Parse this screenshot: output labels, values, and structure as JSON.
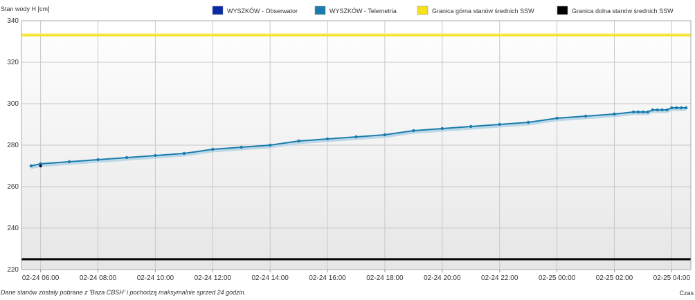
{
  "chart_data": {
    "type": "line",
    "ylabel": "Stan wody H [cm]",
    "xlabel": "Czas",
    "ylim": [
      220,
      340
    ],
    "yticks": [
      220,
      240,
      260,
      280,
      300,
      320,
      340
    ],
    "xlim": [
      "02-24 05:20",
      "02-25 04:40"
    ],
    "xticks": [
      "02-24 06:00",
      "02-24 08:00",
      "02-24 10:00",
      "02-24 12:00",
      "02-24 14:00",
      "02-24 16:00",
      "02-24 18:00",
      "02-24 20:00",
      "02-24 22:00",
      "02-25 00:00",
      "02-25 02:00",
      "02-25 04:00"
    ],
    "grid": true,
    "legend_position": "top",
    "legend": [
      {
        "name": "WYSZKÓW - Obserwator",
        "color": "#0a2aa8"
      },
      {
        "name": "WYSZKÓW - Telemetria",
        "color": "#1a7cad"
      },
      {
        "name": "Granica górna stanów średnich SSW",
        "color": "#f5e21b"
      },
      {
        "name": "Granica dolna stanów średnich SSW",
        "color": "#000000"
      }
    ],
    "series": [
      {
        "name": "WYSZKÓW - Telemetria",
        "color": "#1a7cad",
        "points": [
          [
            "02-24 05:40",
            270
          ],
          [
            "02-24 06:00",
            271
          ],
          [
            "02-24 07:00",
            272
          ],
          [
            "02-24 08:00",
            273
          ],
          [
            "02-24 09:00",
            274
          ],
          [
            "02-24 10:00",
            275
          ],
          [
            "02-24 11:00",
            276
          ],
          [
            "02-24 12:00",
            278
          ],
          [
            "02-24 13:00",
            279
          ],
          [
            "02-24 14:00",
            280
          ],
          [
            "02-24 15:00",
            282
          ],
          [
            "02-24 16:00",
            283
          ],
          [
            "02-24 17:00",
            284
          ],
          [
            "02-24 18:00",
            285
          ],
          [
            "02-24 19:00",
            287
          ],
          [
            "02-24 20:00",
            288
          ],
          [
            "02-24 21:00",
            289
          ],
          [
            "02-24 22:00",
            290
          ],
          [
            "02-24 23:00",
            291
          ],
          [
            "02-25 00:00",
            293
          ],
          [
            "02-25 01:00",
            294
          ],
          [
            "02-25 02:00",
            295
          ],
          [
            "02-25 02:40",
            296
          ],
          [
            "02-25 02:50",
            296
          ],
          [
            "02-25 03:00",
            296
          ],
          [
            "02-25 03:10",
            296
          ],
          [
            "02-25 03:20",
            297
          ],
          [
            "02-25 03:30",
            297
          ],
          [
            "02-25 03:40",
            297
          ],
          [
            "02-25 03:50",
            297
          ],
          [
            "02-25 04:00",
            298
          ],
          [
            "02-25 04:10",
            298
          ],
          [
            "02-25 04:20",
            298
          ],
          [
            "02-25 04:30",
            298
          ]
        ]
      },
      {
        "name": "WYSZKÓW - Obserwator",
        "color": "#0a0a3a",
        "points": [
          [
            "02-24 06:00",
            270
          ]
        ]
      }
    ],
    "reference_lines": [
      {
        "name": "Granica górna stanów średnich SSW",
        "value": 333,
        "color": "#f5e21b"
      },
      {
        "name": "Granica dolna stanów średnich SSW",
        "value": 225,
        "color": "#000000"
      }
    ]
  },
  "footnote": "Dane stanów zostały pobrane z 'Baza CBSH' i pochodzą maksymalnie sprzed 24 godzin."
}
